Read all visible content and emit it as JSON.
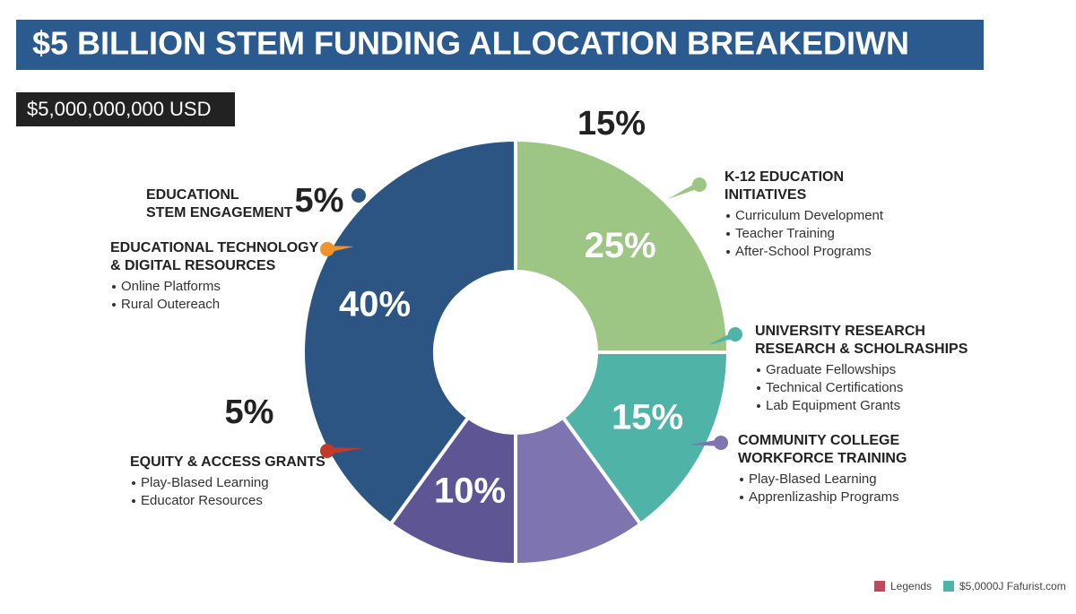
{
  "chart_data": {
    "type": "pie",
    "title": "$5 BILLION  STEM FUNDING ALLOCATION BREAKEDIWN",
    "subtitle": "$5,000,000,000 USD",
    "values": [
      25,
      15,
      10,
      10,
      40
    ],
    "value_labels": [
      "25%",
      "15%",
      null,
      "10%",
      "40%"
    ],
    "colors": [
      "#9dc583",
      "#4fb3a8",
      "#7d74b0",
      "#5e5595",
      "#2c5584"
    ],
    "annotations": [
      "15%",
      "5%",
      "5%"
    ],
    "callouts": [
      {
        "lines": [
          "K-12 EDUCATION",
          "INITIATIVES"
        ],
        "items": [
          "Curriculum Development",
          "Teacher Training",
          "After-School Programs"
        ]
      },
      {
        "lines": [
          "UNIVERSITY RESEARCH",
          "RESEARCH & SCHOLRASHIPS"
        ],
        "items": [
          "Graduate Fellowships",
          "Technical Certifications",
          "Lab Equipment Grants"
        ]
      },
      {
        "lines": [
          "COMMUNITY COLLEGE",
          "WORKFORCE TRAINING"
        ],
        "items": [
          "Play-Blased Learning",
          "Apprenlizaship Programs"
        ]
      },
      {
        "lines": [
          "EQUITY & ACCESS GRANTS"
        ],
        "items": [
          "Play-Blased Learning",
          "Educator Resources"
        ]
      },
      {
        "lines": [
          "EDUCATIONAL TECHNOLOGY",
          "& DIGITAL RESOURCES"
        ],
        "items": [
          "Online Platforms",
          "Rural Outereach"
        ]
      },
      {
        "lines": [
          "EDUCATIONL",
          "STEM ENGAGEMENT"
        ],
        "items": []
      }
    ],
    "legend": [
      "Legends",
      "$5,0000J Fafurist.com"
    ]
  }
}
